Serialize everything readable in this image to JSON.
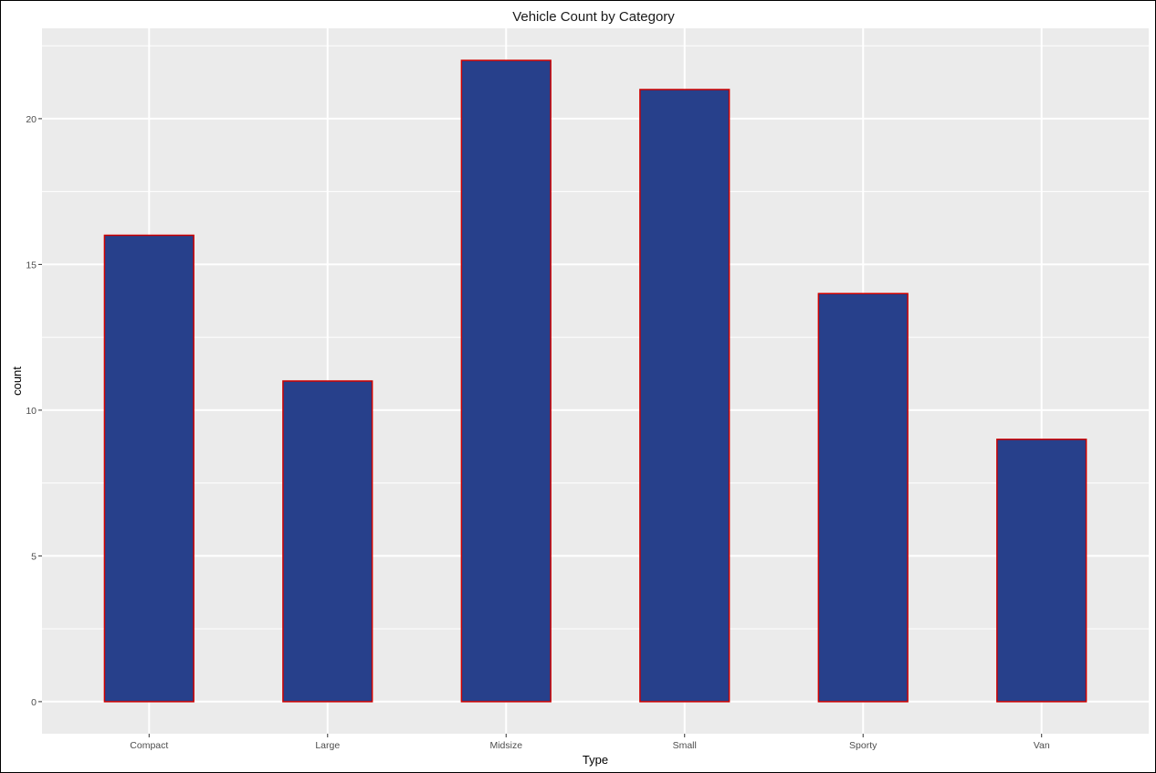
{
  "chart_data": {
    "type": "bar",
    "title": "Vehicle Count by Category",
    "xlabel": "Type",
    "ylabel": "count",
    "categories": [
      "Compact",
      "Large",
      "Midsize",
      "Small",
      "Sporty",
      "Van"
    ],
    "values": [
      16,
      11,
      22,
      21,
      14,
      9
    ],
    "ylim": [
      -1.1,
      23.1
    ],
    "yticks": [
      0,
      5,
      10,
      15,
      20
    ],
    "ytick_labels": [
      "0",
      "5",
      "10",
      "15",
      "20"
    ],
    "grid": true,
    "legend": "none",
    "colors": {
      "bar_fill": "#27408b",
      "bar_outline": "#cd0000",
      "panel_background": "#ebebeb",
      "grid_line": "#ffffff"
    }
  }
}
